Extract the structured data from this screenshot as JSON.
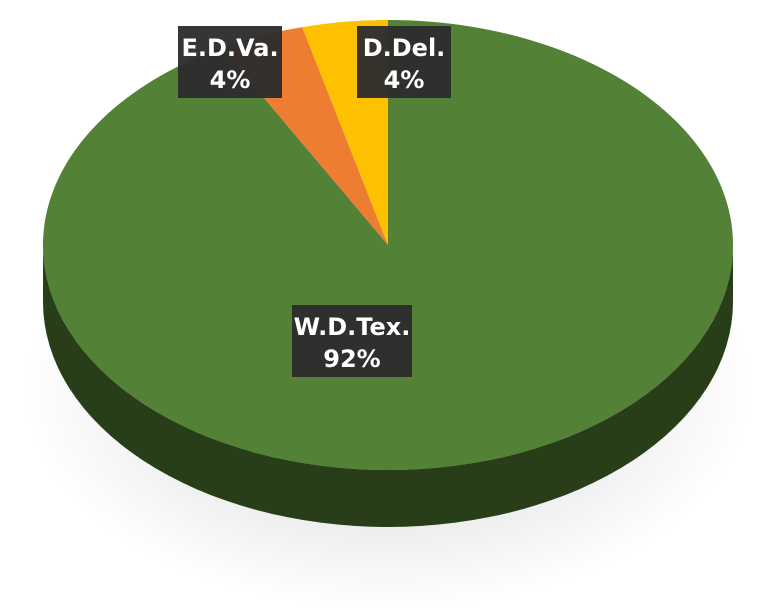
{
  "chart_data": {
    "type": "pie",
    "style": "3d",
    "categories": [
      "W.D.Tex.",
      "E.D.Va.",
      "D.Del."
    ],
    "values": [
      92,
      4,
      4
    ],
    "labels": [
      {
        "category": "W.D.Tex.",
        "value_text": "92%"
      },
      {
        "category": "E.D.Va.",
        "value_text": "4%"
      },
      {
        "category": "D.Del.",
        "value_text": "4%"
      }
    ],
    "colors": {
      "W.D.Tex.": "#538135",
      "E.D.Va.": "#ED7D31",
      "D.Del.": "#FFC000",
      "label_background": "#2D2D2D",
      "label_text": "#FFFFFF"
    },
    "legend": "none"
  }
}
